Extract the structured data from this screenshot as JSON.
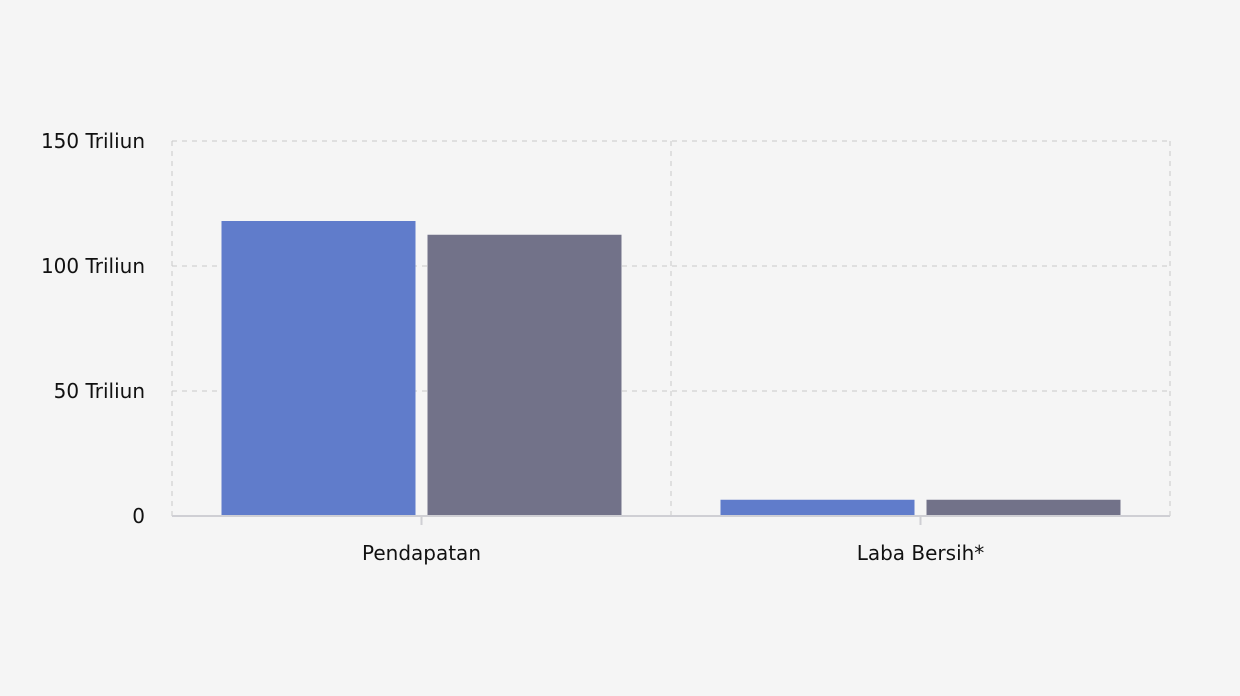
{
  "chart_data": {
    "type": "bar",
    "categories": [
      "Pendapatan",
      "Laba Bersih*"
    ],
    "series": [
      {
        "color": "#607ccb",
        "values": [
          118,
          6.5
        ]
      },
      {
        "color": "#727289",
        "values": [
          112.5,
          6.5
        ]
      }
    ],
    "ylim": [
      0,
      150
    ],
    "y_ticks": [
      {
        "value": 0,
        "label": "0"
      },
      {
        "value": 50,
        "label": "50 Triliun"
      },
      {
        "value": 100,
        "label": "100 Triliun"
      },
      {
        "value": 150,
        "label": "150 Triliun"
      }
    ],
    "grid": true,
    "legend": false
  }
}
